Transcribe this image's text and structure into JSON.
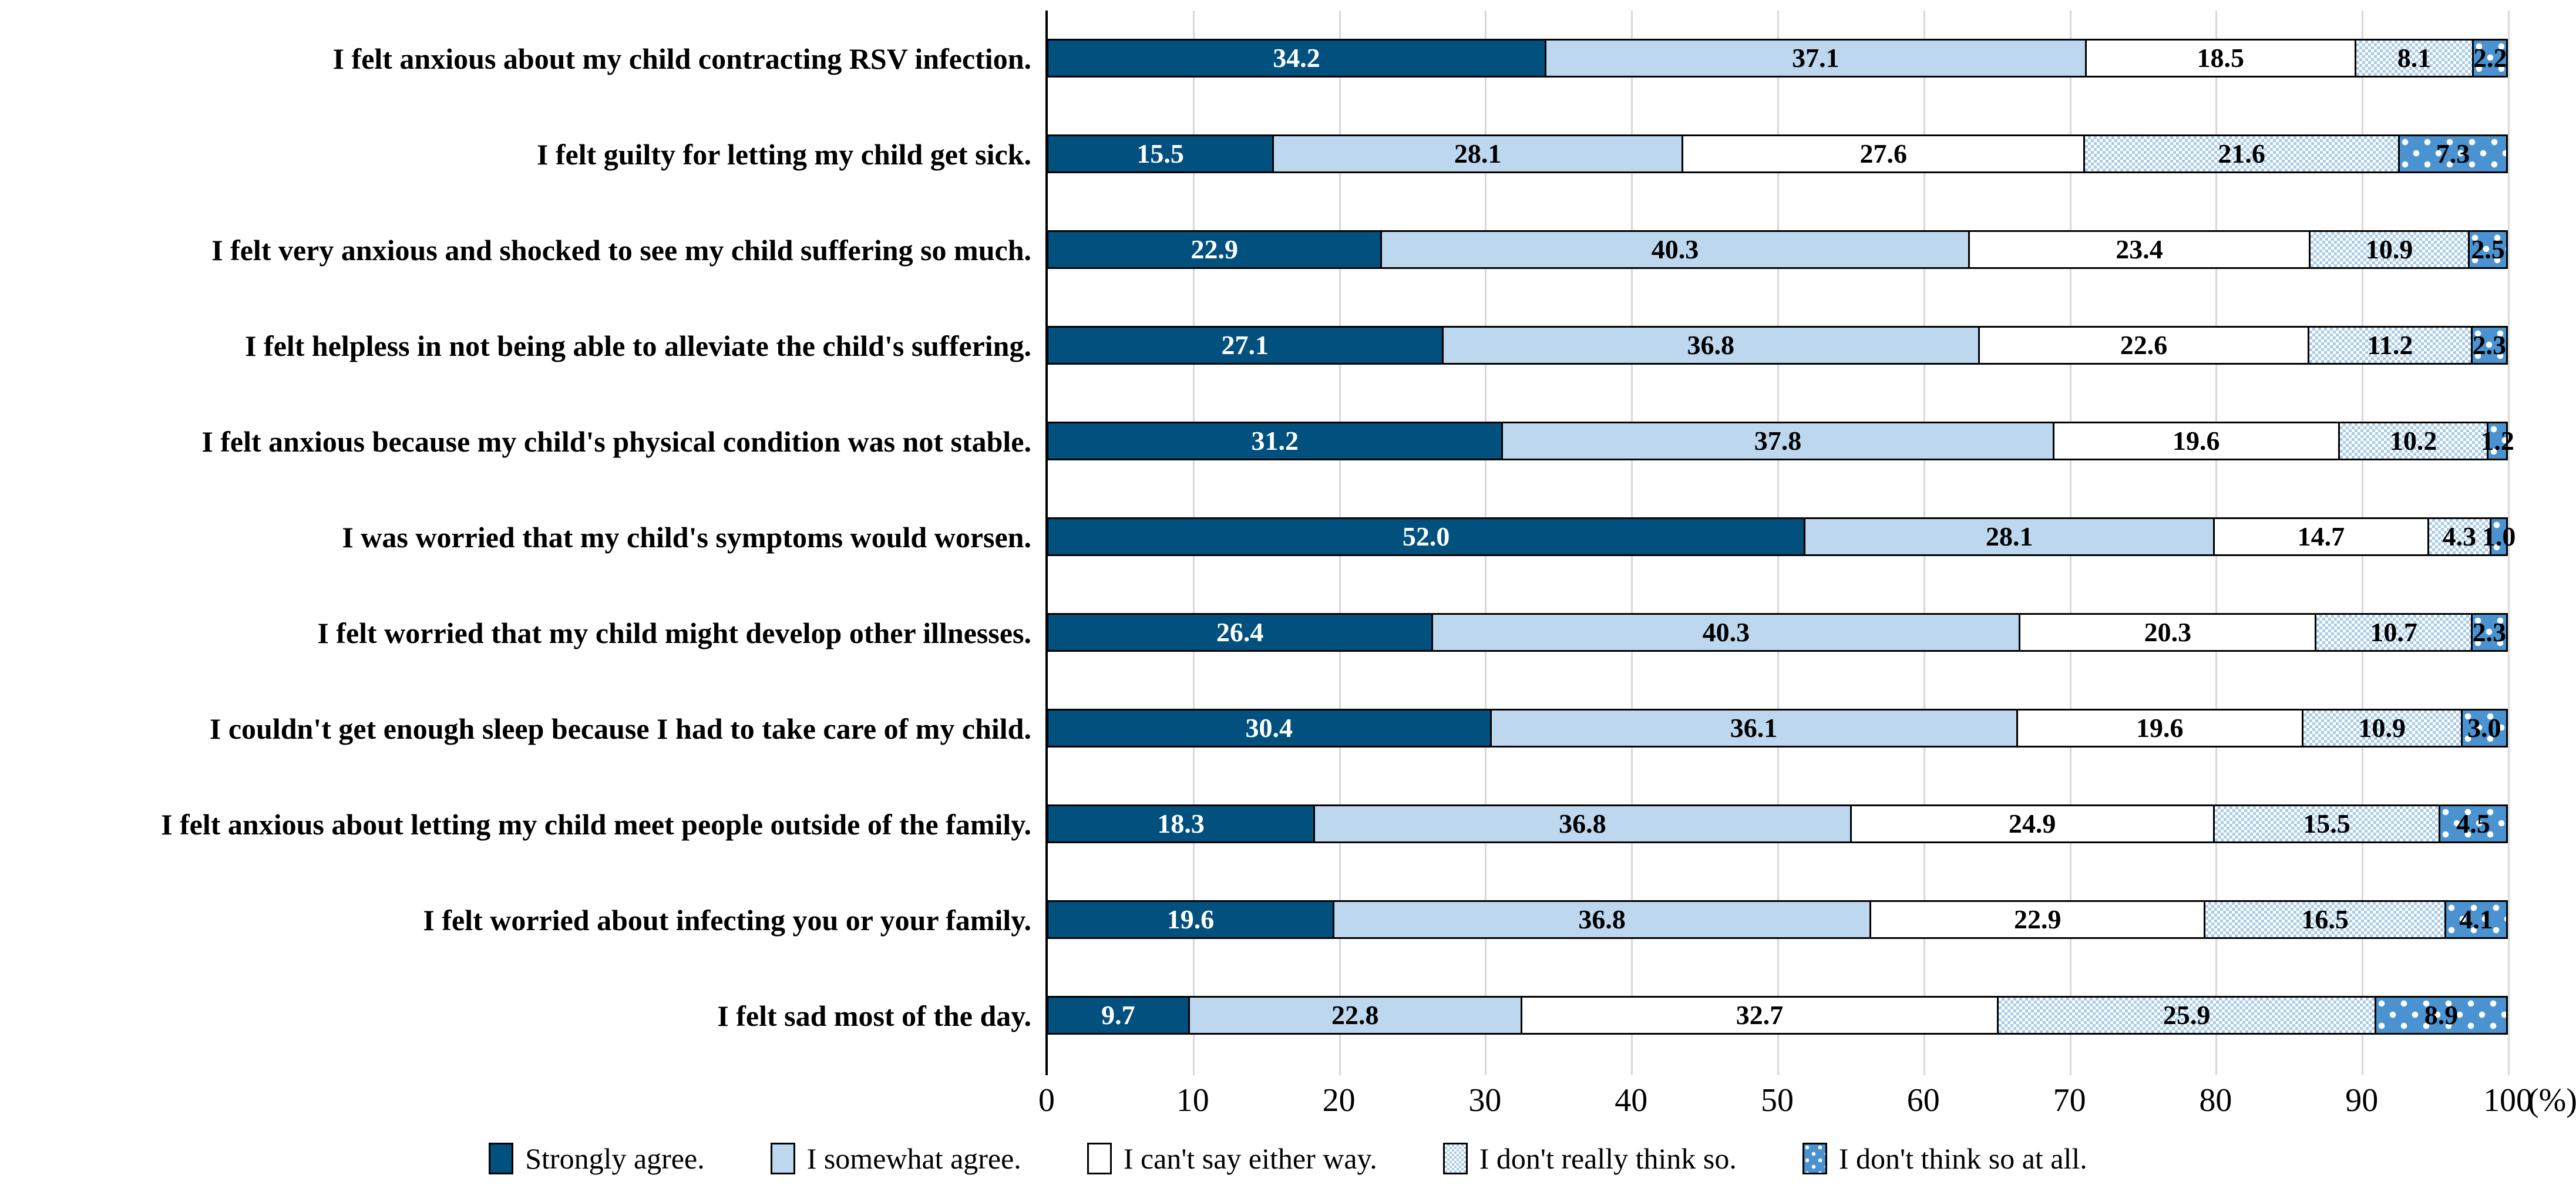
{
  "chart_data": {
    "type": "bar",
    "orientation": "horizontal-stacked",
    "title": "",
    "xlabel": "",
    "xlabel_unit": "(%)",
    "ylabel": "",
    "xlim": [
      0,
      100
    ],
    "x_ticks": [
      0,
      10,
      20,
      30,
      40,
      50,
      60,
      70,
      80,
      90,
      100
    ],
    "grid": "vertical gridlines every 10, light gray",
    "legend_position": "bottom",
    "grid_color": "#d9d9d9",
    "categories": [
      "I felt anxious about my child contracting RSV infection.",
      "I felt guilty for letting my child get sick.",
      "I felt very anxious and shocked to see my child suffering so much.",
      "I felt helpless in not being able to alleviate the child's suffering.",
      "I felt anxious because my child's physical condition was not stable.",
      "I was worried that my child's symptoms would worsen.",
      "I felt worried that my child might develop other illnesses.",
      "I couldn't get enough sleep because I had to take care of my child.",
      "I felt anxious about letting my child meet people outside of the family.",
      "I felt worried about infecting you or your family.",
      "I felt sad most of the day."
    ],
    "series": [
      {
        "name": "Strongly agree.",
        "swatch": "solid",
        "color": "#02507e",
        "text_color": "#ffffff",
        "values": [
          34.2,
          15.5,
          22.9,
          27.1,
          31.2,
          52.0,
          26.4,
          30.4,
          18.3,
          19.6,
          9.7
        ]
      },
      {
        "name": "I somewhat agree.",
        "swatch": "solid",
        "color": "#bdd7ee",
        "text_color": "#000000",
        "values": [
          37.1,
          28.1,
          40.3,
          36.8,
          37.8,
          28.1,
          40.3,
          36.1,
          36.8,
          36.8,
          22.8
        ]
      },
      {
        "name": "I can't say either way.",
        "swatch": "solid",
        "color": "#ffffff",
        "text_color": "#000000",
        "values": [
          18.5,
          27.6,
          23.4,
          22.6,
          19.6,
          14.7,
          20.3,
          19.6,
          24.9,
          22.9,
          32.7
        ]
      },
      {
        "name": "I don't really think so.",
        "swatch": "checker",
        "color": "#a9cce9",
        "base_color": "#ffffff",
        "text_color": "#000000",
        "values": [
          8.1,
          21.6,
          10.9,
          11.2,
          10.2,
          4.3,
          10.7,
          10.9,
          15.5,
          16.5,
          25.9
        ]
      },
      {
        "name": "I don't think so at all.",
        "swatch": "dots",
        "color": "#4a93d0",
        "dot_color": "#ffffff",
        "text_color": "#000000",
        "values": [
          2.2,
          7.3,
          2.5,
          2.3,
          1.2,
          1.0,
          2.3,
          3.0,
          4.5,
          4.1,
          8.9
        ]
      }
    ]
  }
}
